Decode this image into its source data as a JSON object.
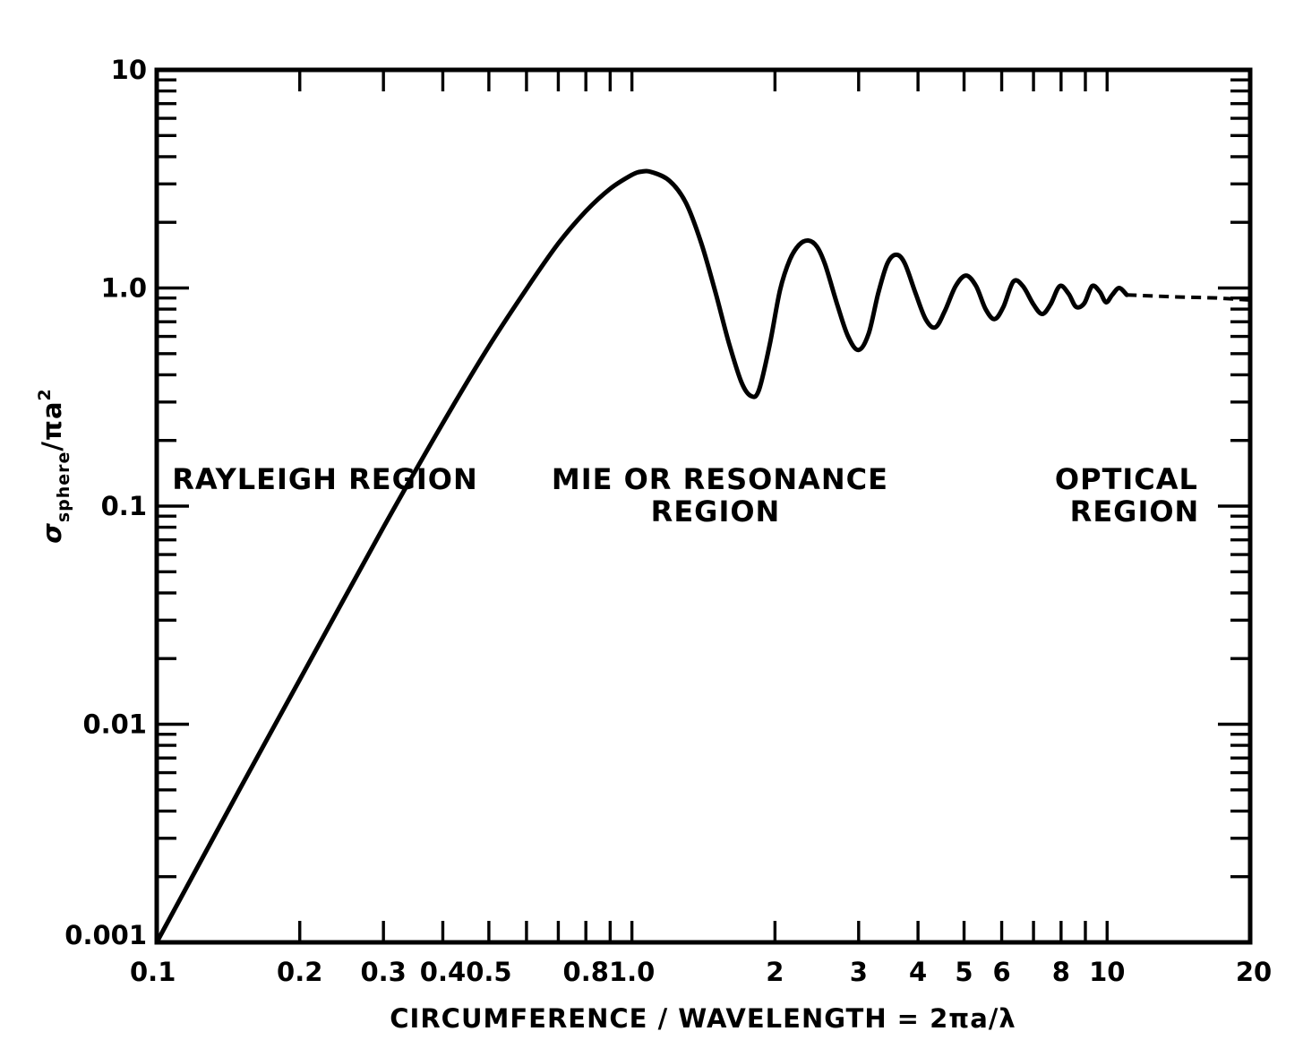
{
  "chart_data": {
    "type": "line",
    "title": "",
    "xlabel": "CIRCUMFERENCE / WAVELENGTH = 2πa/λ",
    "ylabel": {
      "sigma": "σ",
      "subscript": "sphere",
      "rest": "/πa",
      "sup": "2"
    },
    "xscale": "log",
    "yscale": "log",
    "xlim": [
      0.1,
      20
    ],
    "ylim": [
      0.001,
      10
    ],
    "grid": false,
    "x_ticks": [
      {
        "value": 0.1,
        "label": "0.1"
      },
      {
        "value": 0.2,
        "label": "0.2"
      },
      {
        "value": 0.3,
        "label": "0.3"
      },
      {
        "value": 0.4,
        "label": "0.4"
      },
      {
        "value": 0.5,
        "label": "0.5"
      },
      {
        "value": 0.8,
        "label": "0.8"
      },
      {
        "value": 1.0,
        "label": "1.0"
      },
      {
        "value": 2,
        "label": "2"
      },
      {
        "value": 3,
        "label": "3"
      },
      {
        "value": 4,
        "label": "4"
      },
      {
        "value": 5,
        "label": "5"
      },
      {
        "value": 6,
        "label": "6"
      },
      {
        "value": 8,
        "label": "8"
      },
      {
        "value": 10,
        "label": "10"
      },
      {
        "value": 20,
        "label": "20"
      }
    ],
    "x_minor_ticks": [
      0.6,
      0.7,
      0.9,
      7,
      9
    ],
    "y_ticks": [
      {
        "value": 0.001,
        "label": "0.001"
      },
      {
        "value": 0.01,
        "label": "0.01"
      },
      {
        "value": 0.1,
        "label": "0.1"
      },
      {
        "value": 1.0,
        "label": "1.0"
      },
      {
        "value": 10,
        "label": "10"
      }
    ],
    "annotations": [
      {
        "lines": [
          "RAYLEIGH REGION"
        ]
      },
      {
        "lines": [
          "MIE OR RESONANCE",
          "REGION"
        ]
      },
      {
        "lines": [
          "OPTICAL",
          "REGION"
        ]
      }
    ],
    "series": [
      {
        "style": "solid",
        "points": [
          [
            0.1,
            0.001
          ],
          [
            0.15,
            0.0051
          ],
          [
            0.2,
            0.016
          ],
          [
            0.3,
            0.08
          ],
          [
            0.4,
            0.24
          ],
          [
            0.5,
            0.54
          ],
          [
            0.6,
            0.99
          ],
          [
            0.7,
            1.6
          ],
          [
            0.8,
            2.25
          ],
          [
            0.9,
            2.85
          ],
          [
            1.0,
            3.3
          ],
          [
            1.05,
            3.42
          ],
          [
            1.1,
            3.4
          ],
          [
            1.2,
            3.1
          ],
          [
            1.3,
            2.45
          ],
          [
            1.4,
            1.6
          ],
          [
            1.5,
            0.95
          ],
          [
            1.6,
            0.56
          ],
          [
            1.7,
            0.37
          ],
          [
            1.78,
            0.32
          ],
          [
            1.85,
            0.34
          ],
          [
            1.95,
            0.55
          ],
          [
            2.05,
            0.98
          ],
          [
            2.15,
            1.35
          ],
          [
            2.25,
            1.58
          ],
          [
            2.35,
            1.65
          ],
          [
            2.45,
            1.55
          ],
          [
            2.55,
            1.28
          ],
          [
            2.7,
            0.85
          ],
          [
            2.85,
            0.6
          ],
          [
            3.0,
            0.52
          ],
          [
            3.15,
            0.62
          ],
          [
            3.3,
            0.95
          ],
          [
            3.45,
            1.3
          ],
          [
            3.6,
            1.42
          ],
          [
            3.75,
            1.3
          ],
          [
            3.95,
            0.95
          ],
          [
            4.15,
            0.72
          ],
          [
            4.35,
            0.66
          ],
          [
            4.55,
            0.78
          ],
          [
            4.8,
            1.02
          ],
          [
            5.05,
            1.14
          ],
          [
            5.3,
            1.02
          ],
          [
            5.55,
            0.8
          ],
          [
            5.8,
            0.72
          ],
          [
            6.05,
            0.82
          ],
          [
            6.35,
            1.07
          ],
          [
            6.65,
            1.02
          ],
          [
            7.0,
            0.84
          ],
          [
            7.3,
            0.76
          ],
          [
            7.6,
            0.84
          ],
          [
            7.95,
            1.02
          ],
          [
            8.3,
            0.94
          ],
          [
            8.6,
            0.82
          ],
          [
            8.95,
            0.85
          ],
          [
            9.3,
            1.02
          ],
          [
            9.65,
            0.96
          ],
          [
            9.95,
            0.86
          ],
          [
            10.25,
            0.93
          ],
          [
            10.6,
            1.0
          ],
          [
            11.0,
            0.93
          ]
        ]
      },
      {
        "style": "dashed",
        "points": [
          [
            11.0,
            0.93
          ],
          [
            14,
            0.91
          ],
          [
            17,
            0.9
          ],
          [
            20,
            0.88
          ]
        ]
      }
    ]
  }
}
